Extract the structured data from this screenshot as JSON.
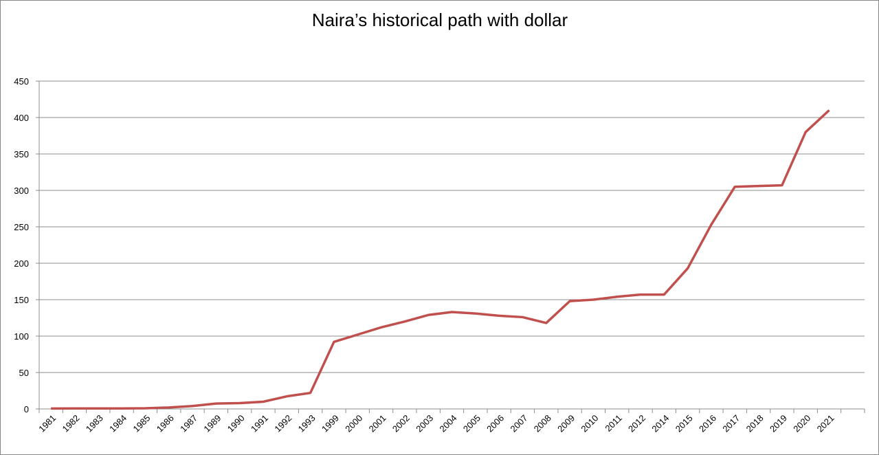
{
  "chart_data": {
    "type": "line",
    "title": "Naira’s historical path with dollar",
    "categories": [
      "1981",
      "1982",
      "1983",
      "1984",
      "1985",
      "1986",
      "1987",
      "1989",
      "1990",
      "1991",
      "1992",
      "1993",
      "1999",
      "2000",
      "2001",
      "2002",
      "2003",
      "2004",
      "2005",
      "2006",
      "2007",
      "2008",
      "2009",
      "2010",
      "2011",
      "2012",
      "2014",
      "2015",
      "2016",
      "2017",
      "2018",
      "2019",
      "2020",
      "2021"
    ],
    "values": [
      0.6,
      0.67,
      0.72,
      0.76,
      0.89,
      2,
      4,
      7.4,
      8,
      9.9,
      17.3,
      22,
      92,
      102,
      112,
      120,
      129,
      133,
      131,
      128,
      126,
      118,
      148,
      150,
      154,
      157,
      157,
      193,
      253,
      305,
      306,
      307,
      380,
      410
    ],
    "color": "#c0504d",
    "ylim": [
      0,
      450
    ],
    "yticks": [
      0,
      50,
      100,
      150,
      200,
      250,
      300,
      350,
      400,
      450
    ],
    "grid": true
  }
}
